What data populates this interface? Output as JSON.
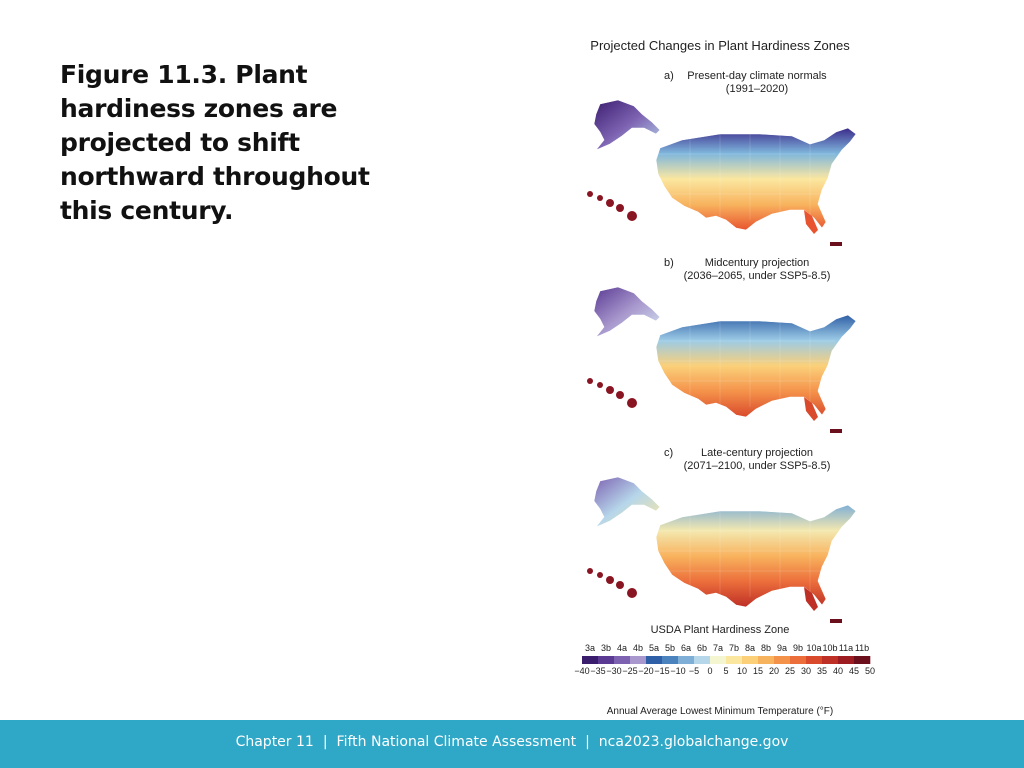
{
  "slide": {
    "title": "Figure 11.3. Plant hardiness zones are projected to shift northward throughout this century."
  },
  "figure": {
    "title": "Projected Changes in Plant Hardiness Zones",
    "panels": [
      {
        "letter": "a)",
        "caption_line1": "Present-day climate normals",
        "caption_line2": "(1991–2020)"
      },
      {
        "letter": "b)",
        "caption_line1": "Midcentury projection",
        "caption_line2": "(2036–2065, under SSP5-8.5)"
      },
      {
        "letter": "c)",
        "caption_line1": "Late-century projection",
        "caption_line2": "(2071–2100, under SSP5-8.5)"
      }
    ],
    "legend": {
      "title": "USDA Plant Hardiness Zone",
      "zones": [
        "3a",
        "3b",
        "4a",
        "4b",
        "5a",
        "5b",
        "6a",
        "6b",
        "7a",
        "7b",
        "8a",
        "8b",
        "9a",
        "9b",
        "10a",
        "10b",
        "11a",
        "11b"
      ],
      "colors": [
        "#3b1d6e",
        "#5a3a93",
        "#7d62b2",
        "#a898cd",
        "#2f5fa6",
        "#4b83bf",
        "#7fafd6",
        "#b6d6ea",
        "#f3f6d0",
        "#fbe7a0",
        "#fbd079",
        "#f8b35e",
        "#f4924a",
        "#ec6e3b",
        "#d94a2c",
        "#be2f26",
        "#9d1c22",
        "#6b0f1d"
      ],
      "ticks": [
        "−40",
        "−35",
        "−30",
        "−25",
        "−20",
        "−15",
        "−10",
        "−5",
        "0",
        "5",
        "10",
        "15",
        "20",
        "25",
        "30",
        "35",
        "40",
        "45",
        "50"
      ],
      "axis_label": "Annual Average Lowest Minimum Temperature (°F)"
    }
  },
  "footer": {
    "chapter": "Chapter 11",
    "assessment": "Fifth National Climate Assessment",
    "site": "nca2023.globalchange.gov"
  }
}
